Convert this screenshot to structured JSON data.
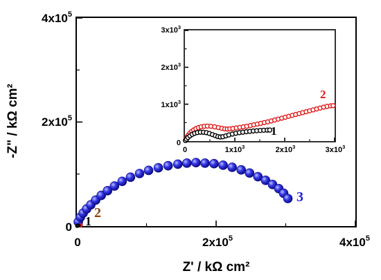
{
  "chart_data": [
    {
      "type": "scatter",
      "title": "",
      "xlabel": "Z' / kΩ cm²",
      "ylabel": "-Z\" / kΩ cm²",
      "xlim": [
        0,
        400000
      ],
      "ylim": [
        0,
        400000
      ],
      "grid": false,
      "legend": "none",
      "xticks": [
        0,
        200000,
        400000
      ],
      "yticks": [
        0,
        200000,
        400000
      ],
      "tick_labels": {
        "x": [
          {
            "base": "0",
            "exp": ""
          },
          {
            "base": "2x10",
            "exp": "5"
          },
          {
            "base": "4x10",
            "exp": "5"
          }
        ],
        "y": [
          {
            "base": "0",
            "exp": ""
          },
          {
            "base": "2x10",
            "exp": "5"
          },
          {
            "base": "4x10",
            "exp": "5"
          }
        ]
      },
      "series": [
        {
          "name": "3",
          "color": "#1f1fd6",
          "x": [
            2000,
            5000,
            9000,
            14000,
            20000,
            27000,
            35000,
            44000,
            54000,
            65000,
            77000,
            90000,
            103000,
            117000,
            131000,
            145000,
            158000,
            171000,
            184000,
            197000,
            210000,
            223000,
            236000,
            248000,
            260000,
            271000,
            281000,
            290000,
            297000,
            303000
          ],
          "y": [
            8000,
            17000,
            25000,
            33000,
            41000,
            50000,
            59000,
            68000,
            77000,
            86000,
            94000,
            101000,
            107000,
            112000,
            116000,
            119000,
            121000,
            122000,
            121000,
            120000,
            117000,
            113000,
            108000,
            102000,
            95000,
            88000,
            80000,
            72000,
            63000,
            53000
          ]
        },
        {
          "name": "2",
          "color": "#e01a1a",
          "x": [
            400,
            1800,
            3200,
            4600,
            6000
          ],
          "y": [
            300,
            800,
            900,
            1200,
            1600
          ]
        },
        {
          "name": "1",
          "color": "#000000",
          "x": [
            300,
            1000,
            1800,
            2600
          ],
          "y": [
            300,
            900,
            1200,
            1100
          ]
        }
      ],
      "annotations": [
        {
          "text": "3",
          "color": "#1f1fd6"
        },
        {
          "text": "2",
          "color": "#8b4513"
        },
        {
          "text": "1",
          "color": "#000000"
        }
      ]
    },
    {
      "type": "scatter",
      "title": "",
      "xlabel": "",
      "ylabel": "",
      "xlim": [
        0,
        3000
      ],
      "ylim": [
        0,
        3000
      ],
      "grid": false,
      "legend": "none",
      "xticks": [
        0,
        1000,
        2000,
        3000
      ],
      "yticks": [
        0,
        1000,
        2000,
        3000
      ],
      "tick_labels": {
        "x": [
          {
            "base": "0",
            "exp": ""
          },
          {
            "base": "1x10",
            "exp": "3"
          },
          {
            "base": "2x10",
            "exp": "3"
          },
          {
            "base": "3x10",
            "exp": "3"
          }
        ],
        "y": [
          {
            "base": "0",
            "exp": ""
          },
          {
            "base": "1x10",
            "exp": "3"
          },
          {
            "base": "2x10",
            "exp": "3"
          },
          {
            "base": "3x10",
            "exp": "3"
          }
        ]
      },
      "series": [
        {
          "name": "2",
          "color": "#e01a1a",
          "x": [
            10,
            25,
            45,
            70,
            100,
            135,
            175,
            220,
            270,
            325,
            385,
            450,
            520,
            595,
            670,
            740,
            800,
            850,
            900,
            960,
            1030,
            1100,
            1170,
            1240,
            1310,
            1380,
            1450,
            1520,
            1590,
            1660,
            1730,
            1800,
            1870,
            1940,
            2010,
            2080,
            2150,
            2220,
            2290,
            2360,
            2430,
            2500,
            2570,
            2640,
            2710,
            2780,
            2850,
            2920,
            2970
          ],
          "y": [
            20,
            65,
            115,
            165,
            215,
            260,
            300,
            335,
            365,
            385,
            400,
            405,
            400,
            385,
            365,
            345,
            330,
            325,
            330,
            340,
            355,
            370,
            385,
            400,
            420,
            440,
            460,
            480,
            500,
            520,
            545,
            570,
            595,
            620,
            645,
            670,
            695,
            720,
            745,
            770,
            795,
            820,
            845,
            870,
            895,
            920,
            940,
            955,
            960
          ]
        },
        {
          "name": "1",
          "color": "#000000",
          "x": [
            10,
            30,
            60,
            100,
            145,
            195,
            250,
            310,
            370,
            430,
            490,
            550,
            610,
            660,
            710,
            760,
            820,
            880,
            950,
            1020,
            1090,
            1160,
            1230,
            1300,
            1370,
            1440,
            1510,
            1580,
            1650,
            1700
          ],
          "y": [
            15,
            50,
            95,
            140,
            180,
            210,
            230,
            240,
            238,
            228,
            205,
            175,
            145,
            120,
            110,
            118,
            140,
            165,
            190,
            210,
            228,
            240,
            252,
            262,
            272,
            280,
            287,
            292,
            296,
            298
          ]
        }
      ],
      "annotations": [
        {
          "text": "2",
          "color": "#e01a1a"
        },
        {
          "text": "1",
          "color": "#000000"
        }
      ]
    }
  ]
}
